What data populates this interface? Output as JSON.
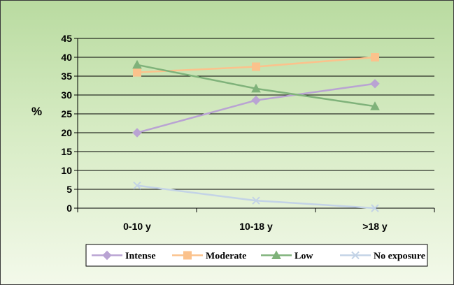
{
  "chart_data": {
    "type": "line",
    "title": "",
    "xlabel": "",
    "ylabel": "%",
    "ylim": [
      0,
      45
    ],
    "yticks": [
      0,
      5,
      10,
      15,
      20,
      25,
      30,
      35,
      40,
      45
    ],
    "grid": true,
    "legend_position": "bottom-right",
    "categories": [
      "0-10 y",
      "10-18 y",
      ">18 y"
    ],
    "series": [
      {
        "name": "Intense",
        "values": [
          20,
          28.6,
          33
        ],
        "color": "#b9a3d3",
        "marker": "diamond"
      },
      {
        "name": "Moderate",
        "values": [
          36,
          37.5,
          40
        ],
        "color": "#fbc28c",
        "marker": "square"
      },
      {
        "name": "Low",
        "values": [
          38,
          31.7,
          27
        ],
        "color": "#7fb27a",
        "marker": "triangle"
      },
      {
        "name": "No exposure",
        "values": [
          6,
          2,
          0
        ],
        "color": "#c3d3e6",
        "marker": "x"
      }
    ]
  }
}
